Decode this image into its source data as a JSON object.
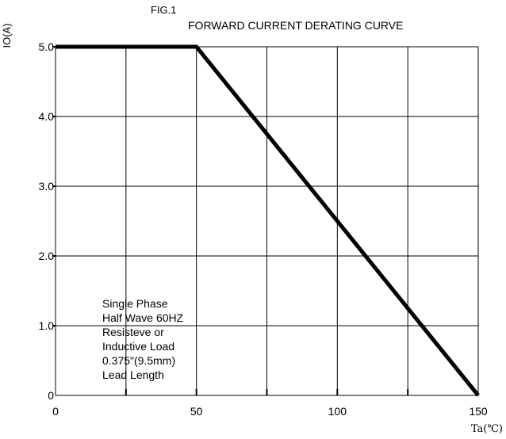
{
  "chart_data": {
    "type": "line",
    "fig_label": "FIG.1",
    "title": "FORWARD CURRENT  DERATING CURVE",
    "xlabel": "Ta(℃)",
    "ylabel": "IO(A)",
    "xlim": [
      0,
      150
    ],
    "ylim": [
      0,
      5
    ],
    "grid": true,
    "x_ticks": [
      0,
      50,
      100,
      150
    ],
    "x_tick_labels": [
      "0",
      "50",
      "100",
      "150"
    ],
    "y_ticks": [
      0,
      1,
      2,
      3,
      4,
      5
    ],
    "y_tick_labels": [
      "0",
      "1.0",
      "2.0",
      "3.0",
      "4.0",
      "5.0"
    ],
    "x_grid": [
      0,
      25,
      50,
      75,
      100,
      125,
      150
    ],
    "y_grid": [
      0,
      1,
      2,
      3,
      4,
      5
    ],
    "series": [
      {
        "x": [
          0,
          50,
          150
        ],
        "y": [
          5,
          5,
          0
        ]
      }
    ],
    "annotation_lines": [
      "Single Phase",
      "Half Wave 60HZ",
      "Resisteve or",
      "Inductive Load",
      "0.375\"(9.5mm)",
      "Lead Length"
    ]
  }
}
